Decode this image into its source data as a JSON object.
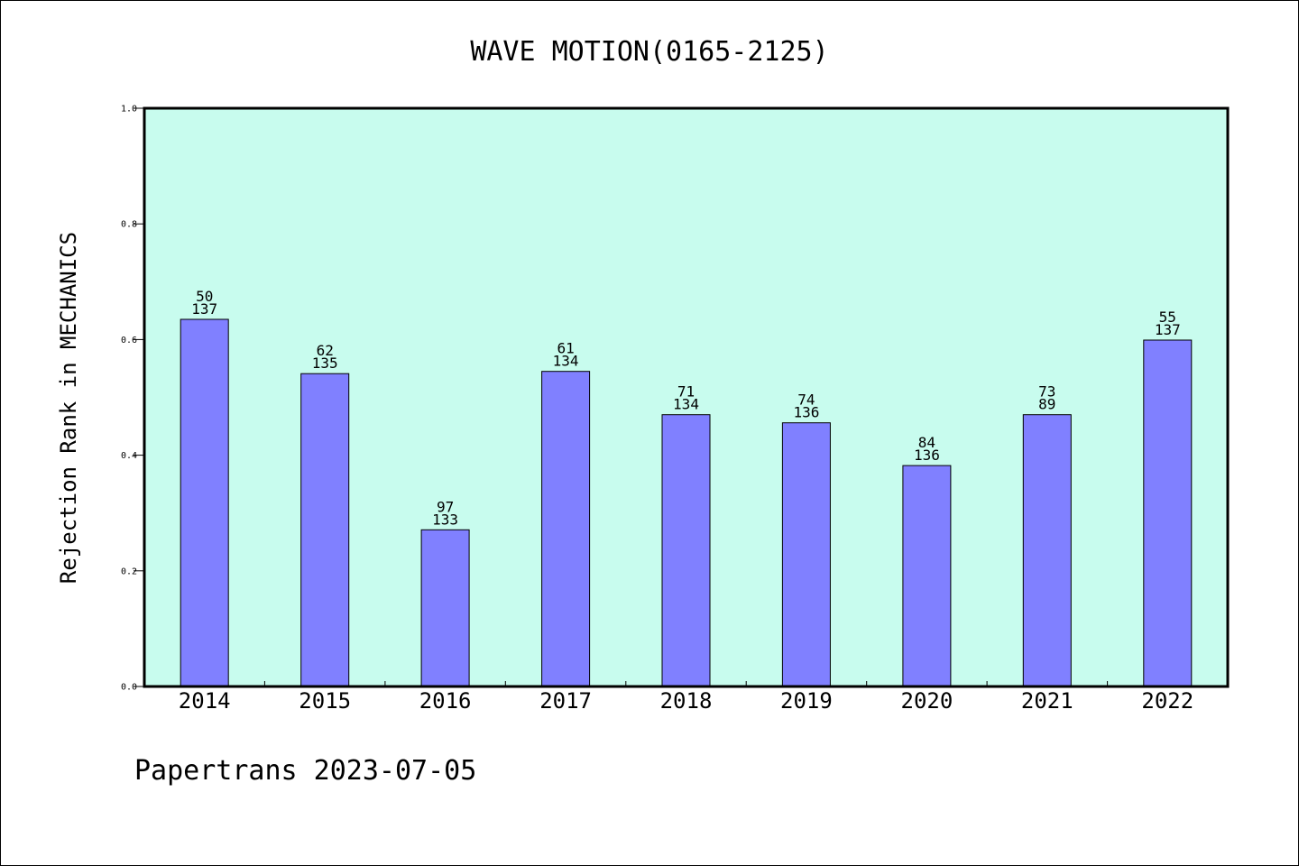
{
  "chart_data": {
    "type": "bar",
    "title": "WAVE MOTION(0165-2125)",
    "xlabel": "",
    "ylabel": "Rejection Rank in MECHANICS",
    "ylim": [
      0,
      1.0
    ],
    "yticks": [
      "0.0",
      "0.2",
      "0.4",
      "0.6",
      "0.8",
      "1.0"
    ],
    "grid": false,
    "categories": [
      "2014",
      "2015",
      "2016",
      "2017",
      "2018",
      "2019",
      "2020",
      "2021",
      "2022"
    ],
    "values": [
      0.635,
      0.541,
      0.271,
      0.545,
      0.47,
      0.456,
      0.382,
      0.47,
      0.599
    ],
    "label_top": [
      "50",
      "62",
      "97",
      "61",
      "71",
      "74",
      "84",
      "73",
      "55"
    ],
    "label_bottom": [
      "137",
      "135",
      "133",
      "134",
      "134",
      "136",
      "136",
      "89",
      "137"
    ],
    "colors": {
      "plot_background": "#c8fcee",
      "bar_fill": "#8080ff",
      "bar_stroke": "#000000"
    }
  },
  "footer": "Papertrans 2023-07-05"
}
